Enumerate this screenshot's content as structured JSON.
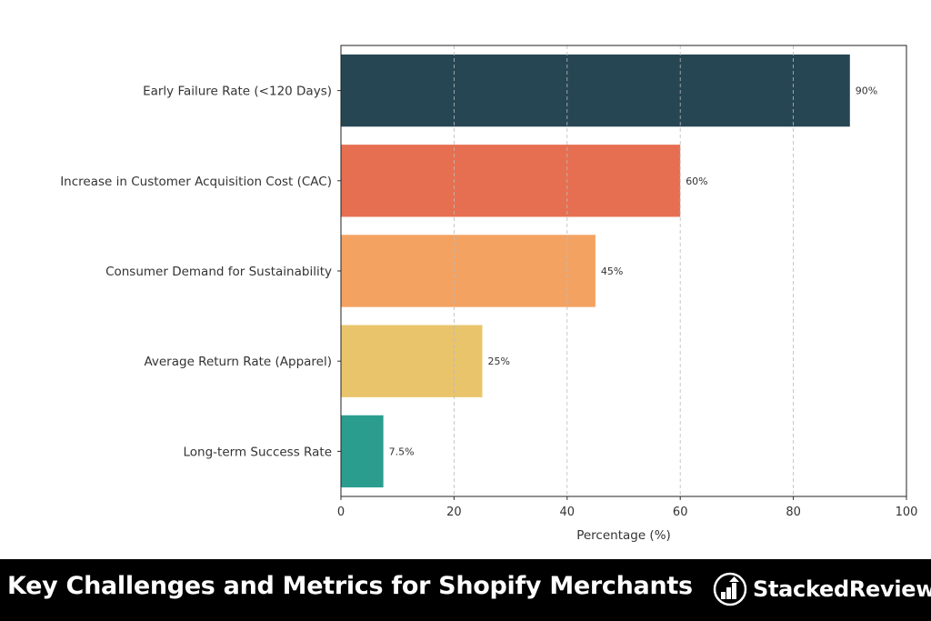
{
  "chart_data": {
    "type": "bar",
    "orientation": "horizontal",
    "categories": [
      "Early Failure Rate (<120 Days)",
      "Increase in Customer Acquisition Cost (CAC)",
      "Consumer Demand for Sustainability",
      "Average Return Rate (Apparel)",
      "Long-term Success Rate"
    ],
    "values": [
      90,
      60,
      45,
      25,
      7.5
    ],
    "value_labels": [
      "90%",
      "60%",
      "45%",
      "25%",
      "7.5%"
    ],
    "colors": [
      "#264653",
      "#E76F51",
      "#F4A261",
      "#E9C46A",
      "#2A9D8F"
    ],
    "xlabel": "Percentage (%)",
    "ylabel": "",
    "xlim": [
      0,
      100
    ],
    "xticks": [
      0,
      20,
      40,
      60,
      80,
      100
    ],
    "grid": "x dashed"
  },
  "banner": {
    "title": "Key Challenges and Metrics for Shopify Merchants",
    "brand": "StackedReview"
  }
}
